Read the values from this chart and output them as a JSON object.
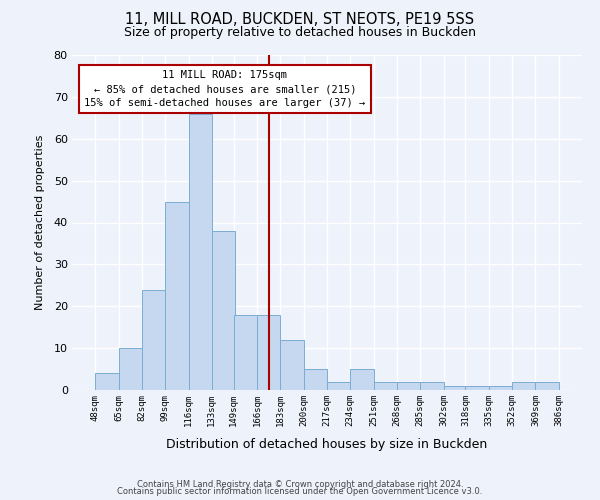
{
  "title": "11, MILL ROAD, BUCKDEN, ST NEOTS, PE19 5SS",
  "subtitle": "Size of property relative to detached houses in Buckden",
  "xlabel": "Distribution of detached houses by size in Buckden",
  "ylabel": "Number of detached properties",
  "bar_color": "#c5d8f0",
  "bar_edge_color": "#7aadd4",
  "background_color": "#eef2fa",
  "grid_color": "#ffffff",
  "bin_labels": [
    "48sqm",
    "65sqm",
    "82sqm",
    "99sqm",
    "116sqm",
    "133sqm",
    "149sqm",
    "166sqm",
    "183sqm",
    "200sqm",
    "217sqm",
    "234sqm",
    "251sqm",
    "268sqm",
    "285sqm",
    "302sqm",
    "318sqm",
    "335sqm",
    "352sqm",
    "369sqm",
    "386sqm"
  ],
  "bin_left": [
    48,
    65,
    82,
    99,
    116,
    133,
    149,
    166,
    183,
    200,
    217,
    234,
    251,
    268,
    285,
    302,
    318,
    335,
    352,
    369
  ],
  "bin_width": 17,
  "counts": [
    4,
    10,
    24,
    45,
    66,
    38,
    18,
    18,
    12,
    5,
    2,
    5,
    2,
    2,
    2,
    1,
    1,
    1,
    2,
    2
  ],
  "ylim": [
    0,
    80
  ],
  "yticks": [
    0,
    10,
    20,
    30,
    40,
    50,
    60,
    70,
    80
  ],
  "xlim_left": 31,
  "xlim_right": 403,
  "vline_x": 175,
  "vline_color": "#aa0000",
  "annotation_title": "11 MILL ROAD: 175sqm",
  "annotation_line1": "← 85% of detached houses are smaller (215)",
  "annotation_line2": "15% of semi-detached houses are larger (37) →",
  "annotation_box_facecolor": "#ffffff",
  "annotation_box_edgecolor": "#aa0000",
  "footnote1": "Contains HM Land Registry data © Crown copyright and database right 2024.",
  "footnote2": "Contains public sector information licensed under the Open Government Licence v3.0."
}
